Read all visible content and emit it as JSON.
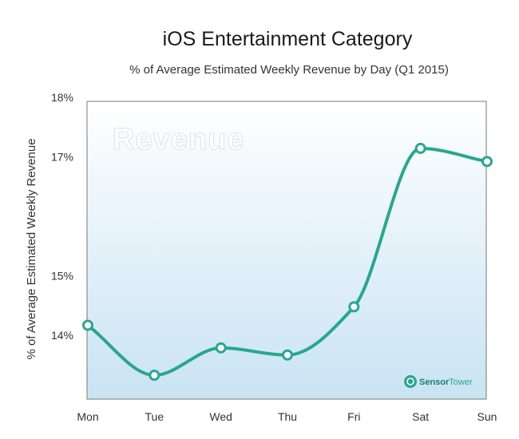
{
  "chart_data": {
    "type": "line",
    "title": "iOS Entertainment Category",
    "subtitle": "% of Average Estimated Weekly Revenue by Day (Q1 2015)",
    "xlabel": "",
    "ylabel": "% of  Average Estimated Weekly Revenue",
    "categories": [
      "Mon",
      "Tue",
      "Wed",
      "Thu",
      "Fri",
      "Sat",
      "Sun"
    ],
    "series": [
      {
        "values": [
          14.17,
          13.33,
          13.79,
          13.67,
          14.48,
          17.14,
          16.92
        ]
      }
    ],
    "y_ticks": [
      {
        "value": 18,
        "label": "18%"
      },
      {
        "value": 17,
        "label": "17%"
      },
      {
        "value": 15,
        "label": "15%"
      },
      {
        "value": 14,
        "label": "14%"
      }
    ],
    "ylim": [
      12.93,
      17.93
    ],
    "watermark": "Revenue",
    "grid": false,
    "line_color": "#2aa68f"
  },
  "branding": {
    "logo_part1": "Sensor",
    "logo_part2": "Tower",
    "icon": "sensor-tower-icon"
  }
}
